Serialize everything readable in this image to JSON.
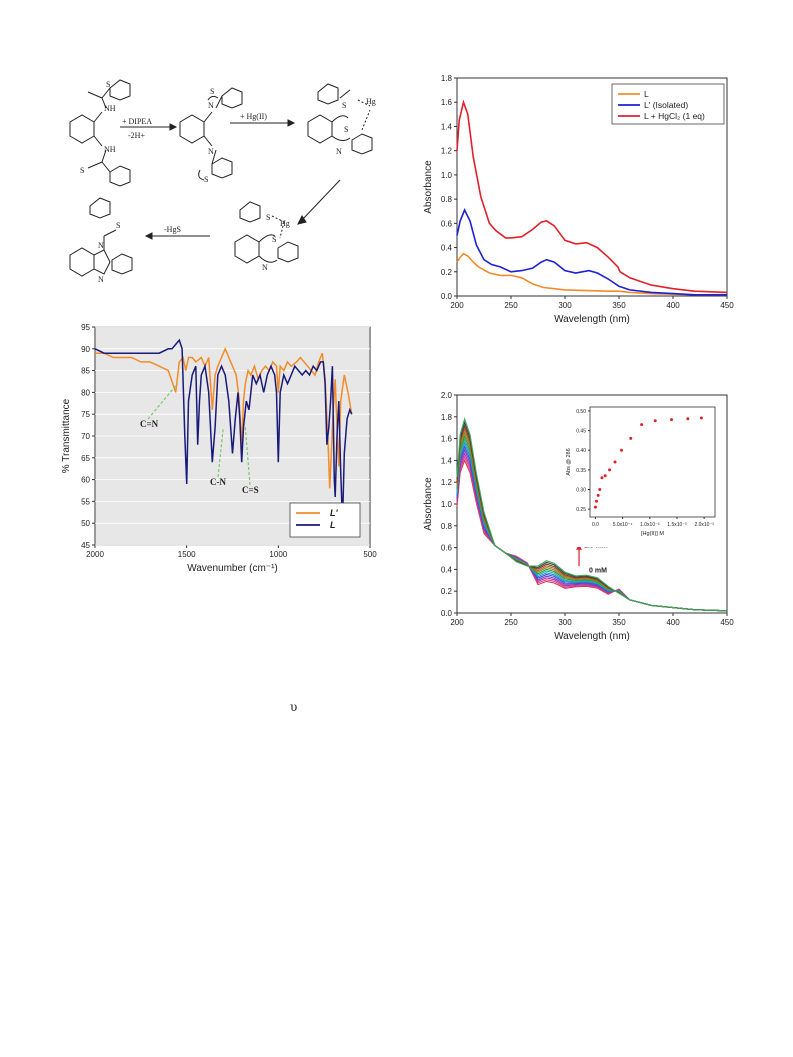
{
  "scheme": {
    "step1_reagent": "+ DIPEA",
    "step1_byproduct": "-2H+",
    "step2_reagent": "+ Hg(II)",
    "step4_byproduct": "-HgS",
    "atoms": {
      "s": "S",
      "nh": "NH",
      "n": "N",
      "hg": "Hg"
    }
  },
  "stray_symbol": "υ",
  "chart_data": [
    {
      "id": "uv",
      "type": "line",
      "xlabel": "Wavelength (nm)",
      "ylabel": "Absorbance",
      "xlim": [
        200,
        450
      ],
      "ylim": [
        0.0,
        1.8
      ],
      "xticks": [
        "200",
        "250",
        "300",
        "350",
        "400",
        "450"
      ],
      "yticks": [
        "0.0",
        "0.2",
        "0.4",
        "0.6",
        "0.8",
        "1.0",
        "1.2",
        "1.4",
        "1.6",
        "1.8"
      ],
      "legend_position": "top-right",
      "series": [
        {
          "name": "L",
          "color": "#f28c28",
          "x": [
            200,
            203,
            206,
            210,
            215,
            220,
            230,
            240,
            250,
            260,
            270,
            280,
            290,
            300,
            320,
            340,
            350,
            360,
            380,
            400,
            420,
            450
          ],
          "y": [
            0.28,
            0.32,
            0.35,
            0.33,
            0.28,
            0.24,
            0.19,
            0.17,
            0.17,
            0.15,
            0.1,
            0.07,
            0.06,
            0.05,
            0.045,
            0.04,
            0.04,
            0.03,
            0.02,
            0.015,
            0.01,
            0.01
          ]
        },
        {
          "name": "L' (Isolated)",
          "color": "#1f1fd6",
          "x": [
            200,
            203,
            207,
            212,
            218,
            225,
            232,
            240,
            250,
            260,
            270,
            278,
            283,
            290,
            300,
            310,
            322,
            330,
            340,
            350,
            360,
            380,
            400,
            420,
            450
          ],
          "y": [
            0.5,
            0.62,
            0.71,
            0.62,
            0.42,
            0.3,
            0.26,
            0.24,
            0.2,
            0.21,
            0.23,
            0.28,
            0.3,
            0.28,
            0.21,
            0.19,
            0.21,
            0.19,
            0.14,
            0.08,
            0.05,
            0.03,
            0.02,
            0.01,
            0.01
          ]
        },
        {
          "name": "L + HgCl₂ (1 eq)",
          "color": "#e0202a",
          "x": [
            200,
            202,
            206,
            210,
            215,
            222,
            230,
            236,
            245,
            250,
            260,
            270,
            278,
            283,
            290,
            300,
            310,
            320,
            330,
            340,
            349,
            351,
            360,
            380,
            400,
            420,
            450
          ],
          "y": [
            1.2,
            1.45,
            1.6,
            1.5,
            1.15,
            0.82,
            0.6,
            0.54,
            0.48,
            0.48,
            0.49,
            0.55,
            0.61,
            0.62,
            0.58,
            0.46,
            0.43,
            0.44,
            0.4,
            0.32,
            0.24,
            0.2,
            0.15,
            0.09,
            0.06,
            0.04,
            0.03
          ]
        }
      ]
    },
    {
      "id": "ir",
      "type": "line",
      "xlabel": "Wavenumber (cm⁻¹)",
      "ylabel": "% Transmittance",
      "xlim": [
        2000,
        500
      ],
      "ylim": [
        45,
        95
      ],
      "xticks": [
        "2000",
        "1500",
        "1000",
        "500"
      ],
      "yticks": [
        "45",
        "50",
        "55",
        "60",
        "65",
        "70",
        "75",
        "80",
        "85",
        "90",
        "95"
      ],
      "legend_position": "bottom-right",
      "annotations": [
        "C=N",
        "C-N",
        "C=S"
      ],
      "series": [
        {
          "name": "L'",
          "color": "#f28c28",
          "x": [
            2000,
            1950,
            1900,
            1850,
            1800,
            1750,
            1700,
            1650,
            1600,
            1560,
            1540,
            1520,
            1505,
            1490,
            1470,
            1450,
            1420,
            1400,
            1380,
            1360,
            1345,
            1330,
            1310,
            1290,
            1270,
            1250,
            1230,
            1215,
            1200,
            1190,
            1180,
            1165,
            1150,
            1130,
            1110,
            1090,
            1070,
            1050,
            1030,
            1010,
            1000,
            990,
            970,
            950,
            930,
            900,
            880,
            860,
            840,
            820,
            800,
            780,
            760,
            745,
            730,
            720,
            700,
            690,
            680,
            670,
            660,
            640,
            620,
            600
          ],
          "y": [
            89,
            89,
            88,
            88,
            88,
            87,
            87,
            86,
            85,
            80,
            87,
            88,
            85,
            88,
            88,
            87,
            88,
            86,
            88,
            76,
            84,
            86,
            88,
            90,
            88,
            86,
            84,
            79,
            68,
            78,
            82,
            85,
            84,
            86,
            83,
            85,
            86,
            85,
            87,
            86,
            80,
            86,
            85,
            87,
            86,
            87,
            88,
            87,
            86,
            85,
            84,
            87,
            89,
            83,
            70,
            58,
            76,
            83,
            72,
            63,
            78,
            84,
            80,
            75
          ]
        },
        {
          "name": "L",
          "color": "#1a1a7a",
          "x": [
            2000,
            1950,
            1900,
            1850,
            1800,
            1750,
            1700,
            1650,
            1600,
            1580,
            1560,
            1540,
            1525,
            1510,
            1500,
            1490,
            1470,
            1450,
            1440,
            1430,
            1420,
            1400,
            1380,
            1360,
            1345,
            1330,
            1310,
            1290,
            1270,
            1250,
            1235,
            1220,
            1210,
            1200,
            1190,
            1175,
            1160,
            1140,
            1120,
            1100,
            1080,
            1060,
            1040,
            1020,
            1010,
            1000,
            990,
            970,
            950,
            930,
            910,
            890,
            870,
            850,
            830,
            810,
            790,
            770,
            755,
            745,
            735,
            725,
            715,
            705,
            695,
            690,
            680,
            670,
            660,
            650,
            640,
            625,
            610,
            600
          ],
          "y": [
            90,
            89,
            89,
            89,
            89,
            89,
            89,
            89,
            90,
            90,
            91,
            92,
            90,
            70,
            59,
            78,
            84,
            86,
            68,
            78,
            84,
            86,
            80,
            64,
            72,
            84,
            86,
            84,
            78,
            66,
            74,
            80,
            74,
            64,
            72,
            78,
            76,
            84,
            82,
            84,
            80,
            84,
            86,
            84,
            80,
            64,
            80,
            84,
            82,
            84,
            86,
            85,
            84,
            85,
            84,
            86,
            85,
            87,
            87,
            82,
            68,
            72,
            78,
            86,
            60,
            56,
            70,
            78,
            62,
            50,
            66,
            74,
            76,
            75
          ]
        }
      ]
    },
    {
      "id": "titration",
      "type": "line",
      "xlabel": "Wavelength (nm)",
      "ylabel": "Absorbance",
      "xlim": [
        200,
        450
      ],
      "ylim": [
        0.0,
        2.0
      ],
      "xticks": [
        "200",
        "250",
        "300",
        "350",
        "400",
        "450"
      ],
      "yticks": [
        "0.0",
        "0.2",
        "0.4",
        "0.6",
        "0.8",
        "1.0",
        "1.2",
        "1.4",
        "1.6",
        "1.8",
        "2.0"
      ],
      "annotations": [
        "1.9 mM",
        "0 mM"
      ],
      "series_colors": [
        "#d43c3c",
        "#e0409a",
        "#b030b0",
        "#7a3fc0",
        "#3b4fd0",
        "#1f8fd8",
        "#20b0a0",
        "#2a9a3a",
        "#8a8a20",
        "#c06020",
        "#7a3a2a",
        "#404040",
        "#3aaa5a"
      ],
      "peak_min": 1.4,
      "peak_max": 1.78,
      "band283_min": 0.29,
      "band283_max": 0.48,
      "inset": {
        "type": "scatter",
        "xlabel": "[Hg(II)] M",
        "ylabel": "Abs @ 286",
        "xticks": [
          "0.0",
          "5.0x10⁻⁴",
          "1.0x10⁻³",
          "1.5x10⁻³",
          "2.0x10⁻³"
        ],
        "yticks": [
          "0.25",
          "0.30",
          "0.35",
          "0.40",
          "0.45",
          "0.50"
        ],
        "xlim": [
          -0.0001,
          0.0022
        ],
        "ylim": [
          0.23,
          0.51
        ],
        "color": "#e0202a",
        "x": [
          0.0,
          2e-05,
          5e-05,
          8e-05,
          0.00012,
          0.00018,
          0.00026,
          0.00036,
          0.00048,
          0.00065,
          0.00085,
          0.0011,
          0.0014,
          0.0017,
          0.00195
        ],
        "y": [
          0.255,
          0.27,
          0.285,
          0.3,
          0.33,
          0.335,
          0.35,
          0.37,
          0.4,
          0.43,
          0.465,
          0.475,
          0.478,
          0.48,
          0.482
        ]
      }
    }
  ]
}
